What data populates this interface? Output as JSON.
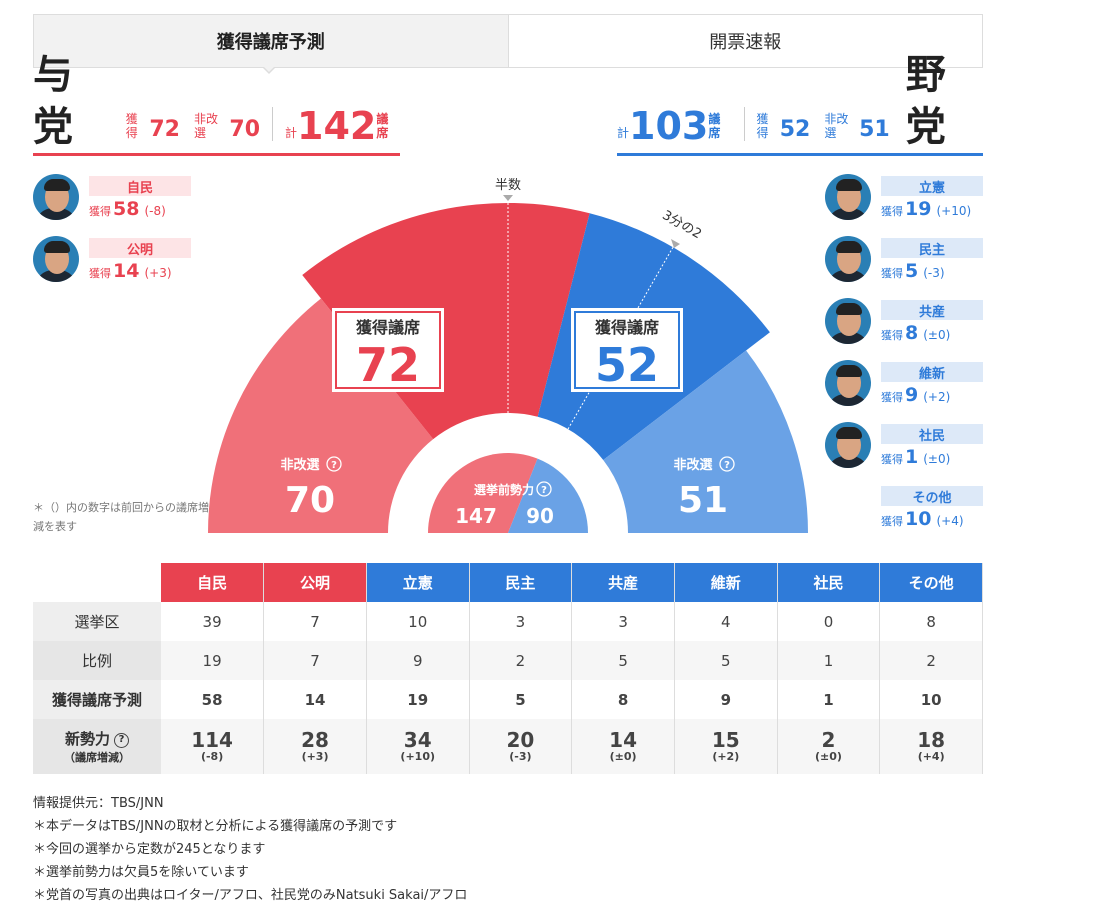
{
  "tabs": [
    {
      "label": "獲得議席予測",
      "active": true
    },
    {
      "label": "開票速報",
      "active": false
    }
  ],
  "ruling": {
    "name": "与党",
    "won_label": "獲得",
    "won": "72",
    "nonup_label": "非改選",
    "nonup": "70",
    "total_label": "計",
    "total": "142",
    "unit": "議席",
    "color": "#e84250"
  },
  "opposition": {
    "name": "野党",
    "won_label": "獲得",
    "won": "52",
    "nonup_label": "非改選",
    "nonup": "51",
    "total_label": "計",
    "total": "103",
    "unit": "議席",
    "color": "#2f7bd9"
  },
  "ruling_parties": [
    {
      "party": "自民",
      "label": "獲得",
      "seats": "58",
      "diff": "(-8)"
    },
    {
      "party": "公明",
      "label": "獲得",
      "seats": "14",
      "diff": "(+3)"
    }
  ],
  "opposition_parties": [
    {
      "party": "立憲",
      "label": "獲得",
      "seats": "19",
      "diff": "(+10)"
    },
    {
      "party": "民主",
      "label": "獲得",
      "seats": "5",
      "diff": "(-3)"
    },
    {
      "party": "共産",
      "label": "獲得",
      "seats": "8",
      "diff": "(±0)"
    },
    {
      "party": "維新",
      "label": "獲得",
      "seats": "9",
      "diff": "(+2)"
    },
    {
      "party": "社民",
      "label": "獲得",
      "seats": "1",
      "diff": "(±0)"
    },
    {
      "party": "その他",
      "label": "獲得",
      "seats": "10",
      "diff": "(+4)"
    }
  ],
  "left_note": "＊（）内の数字は前回からの議席増減を表す",
  "chart_data": {
    "type": "pie",
    "subtype": "semicircle-seat-chart",
    "total_seats": 245,
    "half_label": "半数",
    "two_thirds_label": "3分の2",
    "won_label": "獲得議席",
    "nonup_label": "非改選",
    "pre_label": "選挙前勢力",
    "qmark": "?",
    "segments": [
      {
        "name": "与党 非改選",
        "value": 70,
        "color": "#f07079"
      },
      {
        "name": "与党 獲得",
        "value": 72,
        "color": "#e84250"
      },
      {
        "name": "野党 獲得",
        "value": 52,
        "color": "#2f7bd9"
      },
      {
        "name": "野党 非改選",
        "value": 51,
        "color": "#6aa2e6"
      }
    ],
    "outer_offsets": [
      0,
      1,
      1,
      0
    ],
    "pre_election": [
      {
        "value": 147,
        "color": "#f07079"
      },
      {
        "value": 90,
        "color": "#6aa2e6"
      }
    ],
    "labels": {
      "ruling_won": "72",
      "opp_won": "52",
      "ruling_nonup": "70",
      "opp_nonup": "51",
      "pre_ruling": "147",
      "pre_opp": "90"
    }
  },
  "table": {
    "headers": [
      "自民",
      "公明",
      "立憲",
      "民主",
      "共産",
      "維新",
      "社民",
      "その他"
    ],
    "header_colors": [
      "r",
      "r",
      "b",
      "b",
      "b",
      "b",
      "b",
      "b"
    ],
    "rows": [
      {
        "label": "選挙区",
        "values": [
          "39",
          "7",
          "10",
          "3",
          "3",
          "4",
          "0",
          "8"
        ]
      },
      {
        "label": "比例",
        "values": [
          "19",
          "7",
          "9",
          "2",
          "5",
          "5",
          "1",
          "2"
        ]
      },
      {
        "label": "獲得議席予測",
        "values": [
          "58",
          "14",
          "19",
          "5",
          "8",
          "9",
          "1",
          "10"
        ]
      }
    ],
    "power_row": {
      "label": "新勢力",
      "qmark": "?",
      "sublabel": "（議席増減）",
      "values": [
        "114",
        "28",
        "34",
        "20",
        "14",
        "15",
        "2",
        "18"
      ],
      "diffs": [
        "(-8)",
        "(+3)",
        "(+10)",
        "(-3)",
        "(±0)",
        "(+2)",
        "(±0)",
        "(+4)"
      ]
    }
  },
  "footer": [
    "情報提供元：TBS/JNN",
    "＊本データはTBS/JNNの取材と分析による獲得議席の予測です",
    "＊今回の選挙から定数が245となります",
    "＊選挙前勢力は欠員5を除いています",
    "＊党首の写真の出典はロイター/アフロ、社民党のみNatsuki Sakai/アフロ"
  ]
}
